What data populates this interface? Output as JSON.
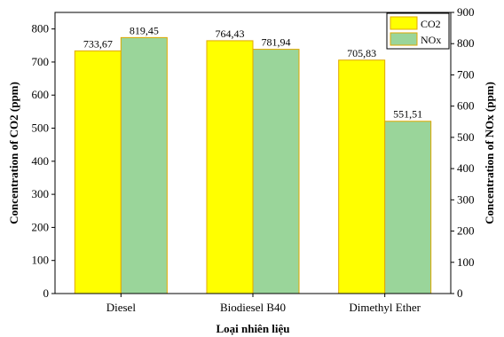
{
  "chart_data": {
    "type": "bar",
    "categories": [
      "Diesel",
      "Biodiesel B40",
      "Dimethyl Ether"
    ],
    "series": [
      {
        "name": "CO2",
        "values": [
          733.67,
          764.43,
          705.83
        ],
        "labels": [
          "733,67",
          "764,43",
          "705,83"
        ],
        "color": "#ffff00",
        "stroke": "#e0a800",
        "axis": "left"
      },
      {
        "name": "NOx",
        "values": [
          819.45,
          781.94,
          551.51
        ],
        "labels": [
          "819,45",
          "781,94",
          "551,51"
        ],
        "color": "#9ad59a",
        "stroke": "#e0a800",
        "axis": "right"
      }
    ],
    "xlabel": "Loại nhiên liệu",
    "ylabel_left": "Concentration of CO2 (ppm)",
    "ylabel_right": "Concentration of NOx (ppm)",
    "ylim_left": [
      0,
      850
    ],
    "yticks_left": [
      0,
      100,
      200,
      300,
      400,
      500,
      600,
      700,
      800
    ],
    "ylim_right": [
      0,
      900
    ],
    "yticks_right": [
      0,
      100,
      200,
      300,
      400,
      500,
      600,
      700,
      800,
      900
    ],
    "legend_position": "top-right",
    "grid": false
  }
}
